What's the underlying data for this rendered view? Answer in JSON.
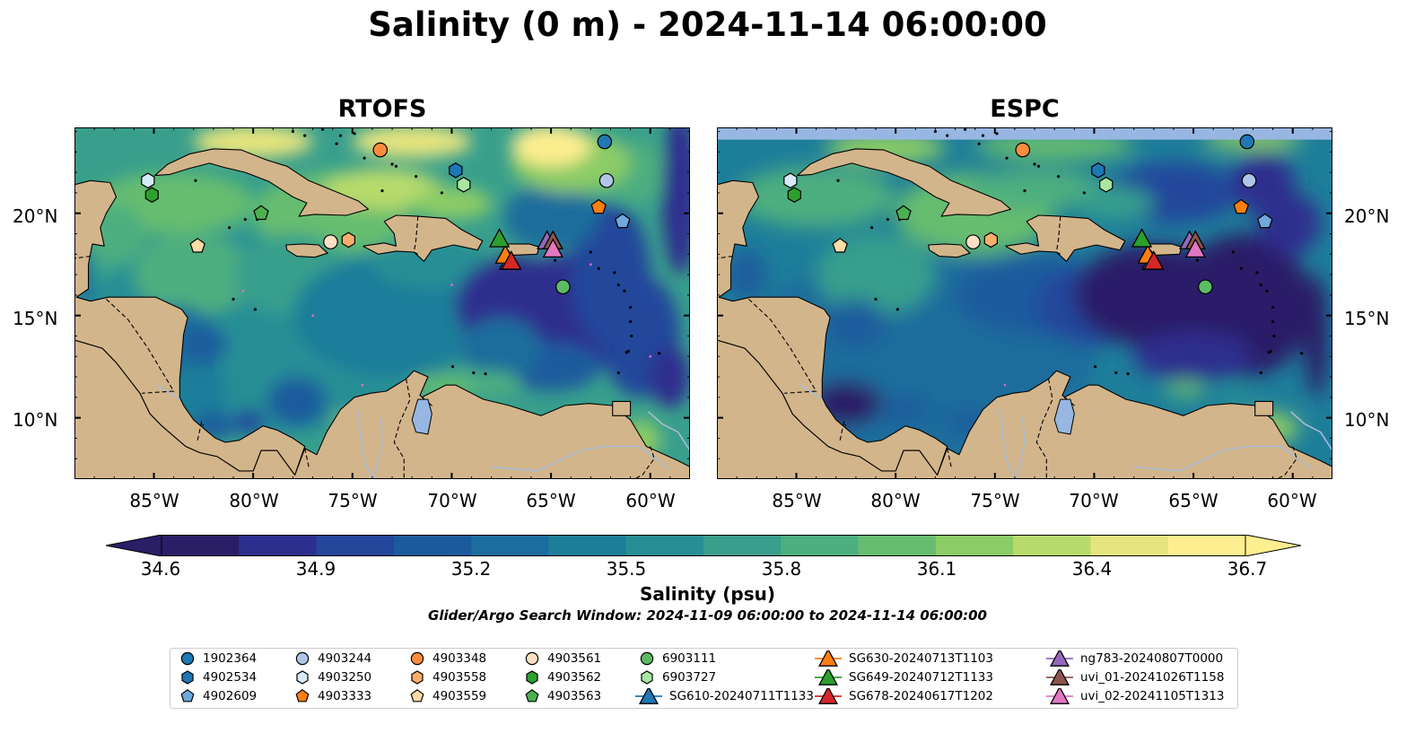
{
  "figure": {
    "title": "Salinity (0 m) - 2024-11-14 06:00:00",
    "panels": [
      {
        "title": "RTOFS",
        "variant": "rtofs"
      },
      {
        "title": "ESPC",
        "variant": "espc"
      }
    ],
    "lat_ticks": [
      "20°N",
      "15°N",
      "10°N"
    ],
    "lon_ticks": [
      "85°W",
      "80°W",
      "75°W",
      "70°W",
      "65°W",
      "60°W"
    ],
    "extent": {
      "lon_min": -89.0,
      "lon_max": -58.0,
      "lat_min": 7.0,
      "lat_max": 24.2
    },
    "colorbar": {
      "min": 34.6,
      "max": 36.7,
      "ticks": [
        "34.6",
        "34.9",
        "35.2",
        "35.5",
        "35.8",
        "36.1",
        "36.4",
        "36.7"
      ],
      "label": "Salinity (psu)",
      "colors": [
        "#2a1f67",
        "#2d2f8e",
        "#23469b",
        "#1b5b9d",
        "#1a6d9c",
        "#1e7e9a",
        "#288e95",
        "#399f8c",
        "#4daf7f",
        "#66bd70",
        "#8ccc66",
        "#b8da6c",
        "#e6e47e",
        "#fdee8f"
      ]
    },
    "search_window": "Glider/Argo Search Window: 2024-11-09 06:00:00 to 2024-11-14 06:00:00"
  },
  "colors": {
    "land": "#d3b58b",
    "water_feature": "#97b6e2",
    "deep": "#2a1f67",
    "shallow_high": "#fdee8f"
  },
  "observations": [
    {
      "id": "1902364",
      "marker": "circle",
      "color": "#1f77b4",
      "lon": -62.3,
      "lat": 23.5
    },
    {
      "id": "4902534",
      "marker": "hexagon",
      "color": "#1f77b4",
      "lon": -69.8,
      "lat": 22.1
    },
    {
      "id": "4902609",
      "marker": "pentagon",
      "color": "#6fa8dc",
      "lon": -61.4,
      "lat": 19.6
    },
    {
      "id": "4903244",
      "marker": "circle",
      "color": "#aec7e8",
      "lon": -62.2,
      "lat": 21.6
    },
    {
      "id": "4903250",
      "marker": "hexagon",
      "color": "#d6eaf8",
      "lon": -85.3,
      "lat": 21.6
    },
    {
      "id": "4903333",
      "marker": "pentagon",
      "color": "#ff7f0e",
      "lon": -62.6,
      "lat": 20.3
    },
    {
      "id": "4903348",
      "marker": "circle",
      "color": "#fd8d3c",
      "lon": -73.6,
      "lat": 23.1
    },
    {
      "id": "4903558",
      "marker": "hexagon",
      "color": "#fdae6b",
      "lon": -75.2,
      "lat": 18.7
    },
    {
      "id": "4903559",
      "marker": "pentagon",
      "color": "#ffdba6",
      "lon": -82.8,
      "lat": 18.4
    },
    {
      "id": "4903561",
      "marker": "circle",
      "color": "#fde0c5",
      "lon": -76.1,
      "lat": 18.6
    },
    {
      "id": "4903562",
      "marker": "hexagon",
      "color": "#2ca02c",
      "lon": -85.1,
      "lat": 20.9
    },
    {
      "id": "4903563",
      "marker": "pentagon",
      "color": "#4caf50",
      "lon": -79.6,
      "lat": 20.0
    },
    {
      "id": "6903111",
      "marker": "circle",
      "color": "#5dbb63",
      "lon": -64.4,
      "lat": 16.4
    },
    {
      "id": "6903727",
      "marker": "hexagon",
      "color": "#a8e6a1",
      "lon": -69.4,
      "lat": 21.4
    }
  ],
  "gliders": [
    {
      "id": "SG610-20240711T1133",
      "color": "#1f77b4",
      "lon": -67.1,
      "lat": 17.6
    },
    {
      "id": "SG630-20240713T1103",
      "color": "#ff7f0e",
      "lon": -67.3,
      "lat": 17.9
    },
    {
      "id": "SG649-20240712T1133",
      "color": "#2ca02c",
      "lon": -67.6,
      "lat": 18.7
    },
    {
      "id": "SG678-20240617T1202",
      "color": "#d62728",
      "lon": -67.0,
      "lat": 17.6
    },
    {
      "id": "ng783-20240807T0000",
      "color": "#9467bd",
      "lon": -65.2,
      "lat": 18.6
    },
    {
      "id": "uvi_01-20241026T1158",
      "color": "#8c564b",
      "lon": -64.9,
      "lat": 18.6
    },
    {
      "id": "uvi_02-20241105T1313",
      "color": "#e377c2",
      "lon": -64.9,
      "lat": 18.2
    }
  ]
}
